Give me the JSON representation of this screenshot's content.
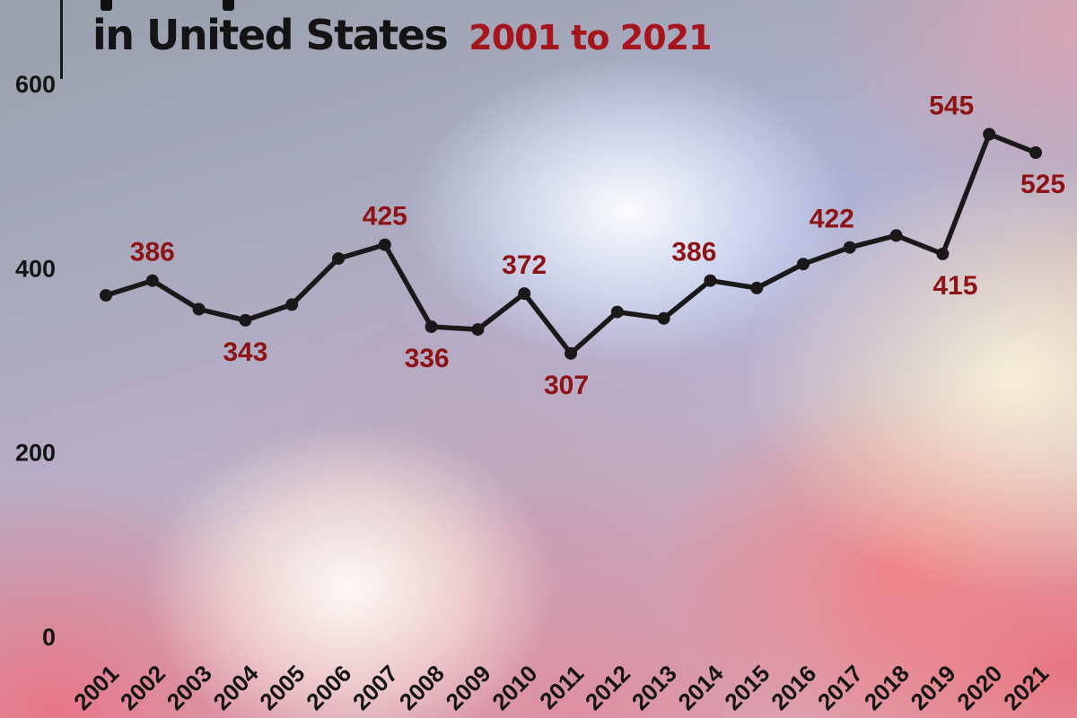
{
  "title": {
    "main": "in United States",
    "range": "2001 to 2021"
  },
  "colors": {
    "title_text": "#141414",
    "accent_red": "#a5151b",
    "label_red": "#8e1315",
    "line": "#1b1819",
    "axis_text": "#151515"
  },
  "chart_data": {
    "type": "line",
    "title": "in United States 2001 to 2021",
    "x": [
      2001,
      2002,
      2003,
      2004,
      2005,
      2006,
      2007,
      2008,
      2009,
      2010,
      2011,
      2012,
      2013,
      2014,
      2015,
      2016,
      2017,
      2018,
      2019,
      2020,
      2021
    ],
    "values": [
      370,
      386,
      355,
      343,
      360,
      410,
      425,
      336,
      333,
      372,
      307,
      352,
      345,
      386,
      378,
      404,
      422,
      435,
      415,
      545,
      525
    ],
    "yticks": [
      0,
      200,
      400,
      600
    ],
    "ylim": [
      0,
      600
    ],
    "xlabel": "",
    "ylabel": "",
    "grid": false,
    "legend": "none",
    "point_labels": [
      {
        "year": 2002,
        "text": "386",
        "pos": "above",
        "dx": 0
      },
      {
        "year": 2004,
        "text": "343",
        "pos": "below",
        "dx": 0
      },
      {
        "year": 2007,
        "text": "425",
        "pos": "above",
        "dx": 0
      },
      {
        "year": 2008,
        "text": "336",
        "pos": "below",
        "dx": -5
      },
      {
        "year": 2010,
        "text": "372",
        "pos": "above",
        "dx": 0
      },
      {
        "year": 2011,
        "text": "307",
        "pos": "below",
        "dx": -5
      },
      {
        "year": 2014,
        "text": "386",
        "pos": "above",
        "dx": -18
      },
      {
        "year": 2017,
        "text": "422",
        "pos": "above",
        "dx": -20
      },
      {
        "year": 2019,
        "text": "415",
        "pos": "below",
        "dx": 14
      },
      {
        "year": 2020,
        "text": "545",
        "pos": "above",
        "dx": -42
      },
      {
        "year": 2021,
        "text": "525",
        "pos": "below",
        "dx": 8
      }
    ]
  }
}
